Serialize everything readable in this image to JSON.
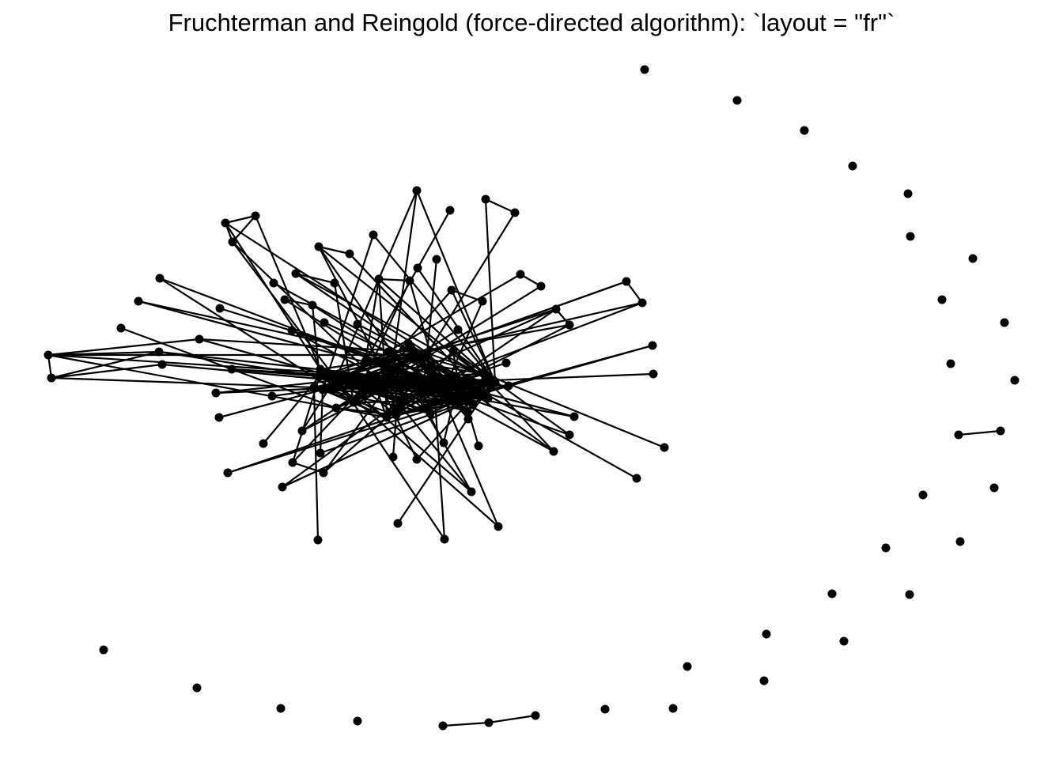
{
  "title": "Fruchterman and Reingold (force-directed algorithm): `layout = \"fr\"`",
  "colors": {
    "background": "#ffffff",
    "node": "#000000",
    "edge": "#000000"
  },
  "graph": {
    "layout": "fr",
    "node_count": 150,
    "isolated_node_count": 34,
    "connected_components_outside_core": 2
  }
}
